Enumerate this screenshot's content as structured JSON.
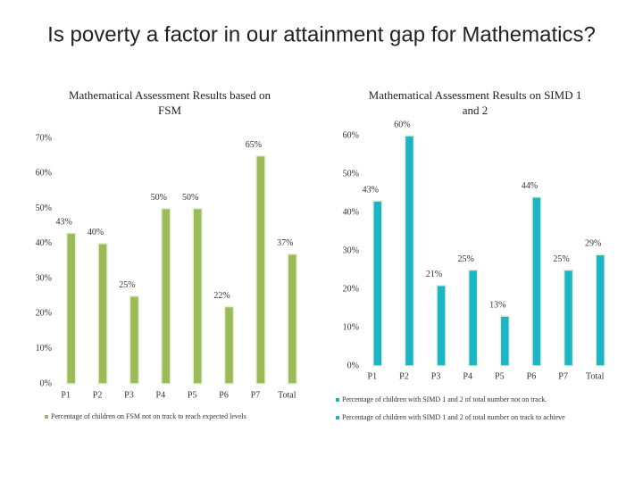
{
  "title": "Is poverty a factor in our attainment gap for Mathematics?",
  "chart_data": [
    {
      "type": "bar",
      "title": "Mathematical Assessment Results based on FSM",
      "categories": [
        "P1",
        "P2",
        "P3",
        "P4",
        "P5",
        "P6",
        "P7",
        "Total"
      ],
      "series": [
        {
          "name": "Percentage of children on FSM not on track to reach expected levels",
          "color": "#9bbb59",
          "values": [
            43,
            40,
            25,
            50,
            50,
            22,
            65,
            37
          ],
          "value_labels": [
            "43%",
            "40%",
            "25%",
            "50%",
            "50%",
            "22%",
            "65%",
            "37%"
          ]
        }
      ],
      "ylim": [
        0,
        70
      ],
      "yticks": [
        {
          "value": 0,
          "label": "0%"
        },
        {
          "value": 10,
          "label": "10%"
        },
        {
          "value": 20,
          "label": "20%"
        },
        {
          "value": 30,
          "label": "30%"
        },
        {
          "value": 40,
          "label": "40%"
        },
        {
          "value": 50,
          "label": "50%"
        },
        {
          "value": 60,
          "label": "60%"
        },
        {
          "value": 70,
          "label": "70%"
        }
      ]
    },
    {
      "type": "bar",
      "title": "Mathematical Assessment Results on SIMD 1 and 2",
      "categories": [
        "P1",
        "P2",
        "P3",
        "P4",
        "P5",
        "P6",
        "P7",
        "Total"
      ],
      "series": [
        {
          "color": "#1cb5c8",
          "values": [
            43,
            60,
            21,
            25,
            13,
            44,
            25,
            29
          ],
          "value_labels": [
            "43%",
            "60%",
            "21%",
            "25%",
            "13%",
            "44%",
            "25%",
            "29%"
          ]
        }
      ],
      "legend": [
        "Percentage of children with SIMD 1 and 2 of total number not on track.",
        "Percentage of children with SIMD 1 and 2 of total number on track to achieve"
      ],
      "ylim": [
        0,
        60
      ],
      "yticks": [
        {
          "value": 0,
          "label": "0%"
        },
        {
          "value": 10,
          "label": "10%"
        },
        {
          "value": 20,
          "label": "20%"
        },
        {
          "value": 30,
          "label": "30%"
        },
        {
          "value": 40,
          "label": "40%"
        },
        {
          "value": 50,
          "label": "50%"
        },
        {
          "value": 60,
          "label": "60%"
        }
      ]
    }
  ]
}
